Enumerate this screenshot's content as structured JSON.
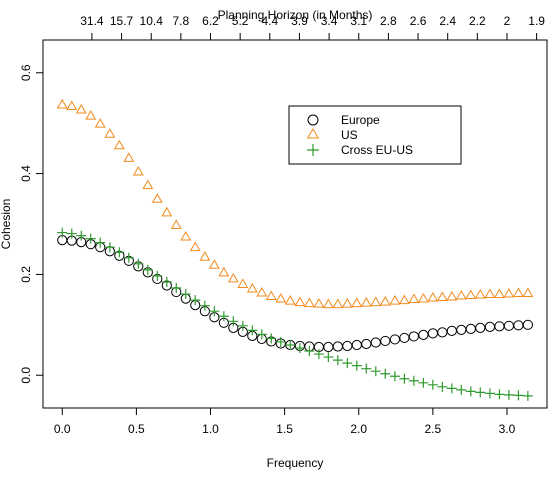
{
  "chart_data": {
    "type": "scatter",
    "title": "",
    "xlabel": "Frequency",
    "ylabel": "Cohesion",
    "x2label": "Planning Horizon (in Months)",
    "xlim": [
      -0.13,
      3.27
    ],
    "ylim": [
      -0.065,
      0.665
    ],
    "xticks": [
      0.0,
      0.5,
      1.0,
      1.5,
      2.0,
      2.5,
      3.0
    ],
    "xtick_labels": [
      "0.0",
      "0.5",
      "1.0",
      "1.5",
      "2.0",
      "2.5",
      "3.0"
    ],
    "yticks": [
      0.0,
      0.2,
      0.4,
      0.6
    ],
    "ytick_labels": [
      "0.0",
      "0.2",
      "0.4",
      "0.6"
    ],
    "x2ticks": [
      0.2,
      0.4,
      0.6,
      0.8,
      1.0,
      1.2,
      1.4,
      1.6,
      1.8,
      2.0,
      2.2,
      2.4,
      2.6,
      2.8,
      3.0,
      3.2
    ],
    "x2tick_labels": [
      "31.4",
      "15.7",
      "10.4",
      "7.8",
      "6.2",
      "5.2",
      "4.4",
      "3.9",
      "3.4",
      "3.1",
      "2.8",
      "2.6",
      "2.4",
      "2.2",
      "2",
      "1.9"
    ],
    "grid": false,
    "legend_position": "top-right",
    "x": [
      0.0,
      0.064,
      0.128,
      0.192,
      0.256,
      0.321,
      0.385,
      0.449,
      0.513,
      0.577,
      0.641,
      0.705,
      0.769,
      0.833,
      0.897,
      0.962,
      1.026,
      1.09,
      1.154,
      1.218,
      1.282,
      1.346,
      1.41,
      1.474,
      1.538,
      1.603,
      1.667,
      1.731,
      1.795,
      1.859,
      1.923,
      1.987,
      2.051,
      2.115,
      2.179,
      2.244,
      2.308,
      2.372,
      2.436,
      2.5,
      2.564,
      2.628,
      2.692,
      2.756,
      2.82,
      2.885,
      2.949,
      3.013,
      3.077,
      3.141
    ],
    "series": [
      {
        "name": "Europe",
        "marker": "circle",
        "color": "#000000",
        "values": [
          0.268,
          0.267,
          0.264,
          0.26,
          0.254,
          0.246,
          0.237,
          0.227,
          0.216,
          0.204,
          0.191,
          0.178,
          0.165,
          0.152,
          0.139,
          0.127,
          0.115,
          0.104,
          0.094,
          0.086,
          0.078,
          0.072,
          0.067,
          0.063,
          0.06,
          0.058,
          0.057,
          0.056,
          0.056,
          0.057,
          0.058,
          0.06,
          0.062,
          0.065,
          0.068,
          0.071,
          0.074,
          0.077,
          0.08,
          0.083,
          0.085,
          0.088,
          0.09,
          0.092,
          0.094,
          0.096,
          0.097,
          0.098,
          0.099,
          0.1
        ]
      },
      {
        "name": "US",
        "marker": "triangle",
        "color": "#f28a1e",
        "values": [
          0.537,
          0.534,
          0.527,
          0.515,
          0.499,
          0.479,
          0.456,
          0.431,
          0.404,
          0.377,
          0.35,
          0.323,
          0.298,
          0.275,
          0.254,
          0.235,
          0.219,
          0.204,
          0.192,
          0.181,
          0.172,
          0.164,
          0.157,
          0.152,
          0.148,
          0.145,
          0.143,
          0.142,
          0.141,
          0.141,
          0.142,
          0.143,
          0.144,
          0.145,
          0.146,
          0.148,
          0.149,
          0.151,
          0.152,
          0.154,
          0.155,
          0.156,
          0.158,
          0.159,
          0.16,
          0.161,
          0.161,
          0.162,
          0.163,
          0.163
        ]
      },
      {
        "name": "Cross EU-US",
        "marker": "plus",
        "color": "#2e9b2e",
        "values": [
          0.283,
          0.281,
          0.277,
          0.271,
          0.263,
          0.254,
          0.244,
          0.233,
          0.221,
          0.209,
          0.197,
          0.185,
          0.173,
          0.161,
          0.149,
          0.138,
          0.127,
          0.117,
          0.107,
          0.098,
          0.089,
          0.081,
          0.073,
          0.066,
          0.06,
          0.054,
          0.048,
          0.042,
          0.036,
          0.03,
          0.024,
          0.019,
          0.013,
          0.008,
          0.003,
          -0.002,
          -0.007,
          -0.011,
          -0.015,
          -0.019,
          -0.023,
          -0.026,
          -0.029,
          -0.032,
          -0.034,
          -0.036,
          -0.038,
          -0.039,
          -0.04,
          -0.041
        ]
      }
    ]
  }
}
